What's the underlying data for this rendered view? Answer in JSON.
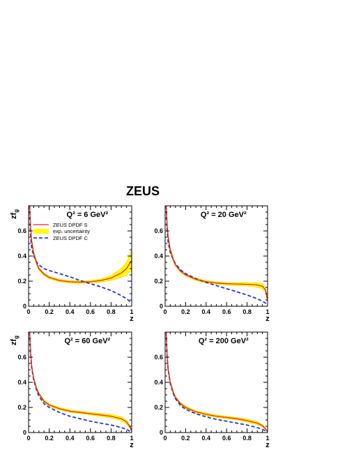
{
  "figure": {
    "title": "ZEUS",
    "colors": {
      "dpdf_s": "#e8231c",
      "band": "#ffff00",
      "band_edge": "#e0c800",
      "dpdf_c": "#1f34e0",
      "axis": "#000000"
    }
  },
  "chart_data": [
    {
      "type": "line",
      "panel_label": "Q² = 6 GeV²",
      "xlabel": "z",
      "ylabel": "zf",
      "ylabel_sub": "g",
      "xlim": [
        0,
        1
      ],
      "ylim": [
        0,
        0.8
      ],
      "xticks": [
        "0",
        "0.2",
        "0.4",
        "0.6",
        "0.8",
        "1"
      ],
      "yticks": [
        "0",
        "0.2",
        "0.4",
        "0.6"
      ],
      "legend": {
        "items": [
          "ZEUS DPDF S",
          "exp. uncertainty",
          "ZEUS DPDF C"
        ],
        "placement": "top-left"
      },
      "series": [
        {
          "name": "ZEUS DPDF S",
          "x": [
            0.01,
            0.02,
            0.03,
            0.05,
            0.08,
            0.1,
            0.15,
            0.2,
            0.3,
            0.4,
            0.5,
            0.6,
            0.7,
            0.8,
            0.9,
            0.95,
            0.98,
            0.995
          ],
          "y": [
            0.8,
            0.62,
            0.52,
            0.42,
            0.34,
            0.3,
            0.255,
            0.23,
            0.205,
            0.195,
            0.192,
            0.195,
            0.205,
            0.225,
            0.265,
            0.3,
            0.34,
            0.36
          ],
          "err": [
            0.05,
            0.03,
            0.025,
            0.02,
            0.015,
            0.012,
            0.01,
            0.01,
            0.01,
            0.01,
            0.01,
            0.01,
            0.012,
            0.02,
            0.035,
            0.05,
            0.065,
            0.08
          ]
        },
        {
          "name": "ZEUS DPDF C",
          "x": [
            0.01,
            0.02,
            0.03,
            0.05,
            0.08,
            0.1,
            0.15,
            0.2,
            0.3,
            0.4,
            0.5,
            0.6,
            0.7,
            0.8,
            0.9,
            0.95,
            0.98,
            0.995
          ],
          "y": [
            0.8,
            0.55,
            0.47,
            0.4,
            0.35,
            0.33,
            0.3,
            0.285,
            0.26,
            0.235,
            0.205,
            0.18,
            0.155,
            0.125,
            0.085,
            0.06,
            0.04,
            0.03
          ]
        }
      ]
    },
    {
      "type": "line",
      "panel_label": "Q² = 20 GeV²",
      "xlabel": "z",
      "ylabel": "",
      "xlim": [
        0,
        1
      ],
      "ylim": [
        0,
        0.8
      ],
      "xticks": [
        "0",
        "0.2",
        "0.4",
        "0.6",
        "0.8",
        "1"
      ],
      "yticks": [
        "0",
        "0.2",
        "0.4",
        "0.6"
      ],
      "series": [
        {
          "name": "ZEUS DPDF S",
          "x": [
            0.01,
            0.02,
            0.03,
            0.05,
            0.08,
            0.1,
            0.15,
            0.2,
            0.3,
            0.4,
            0.5,
            0.6,
            0.7,
            0.8,
            0.9,
            0.95,
            0.98,
            0.995
          ],
          "y": [
            0.8,
            0.64,
            0.55,
            0.45,
            0.37,
            0.33,
            0.28,
            0.25,
            0.215,
            0.195,
            0.185,
            0.18,
            0.177,
            0.175,
            0.17,
            0.16,
            0.13,
            0.06
          ],
          "err": [
            0.05,
            0.03,
            0.025,
            0.02,
            0.015,
            0.012,
            0.01,
            0.01,
            0.01,
            0.01,
            0.01,
            0.01,
            0.012,
            0.014,
            0.018,
            0.02,
            0.02,
            0.015
          ]
        },
        {
          "name": "ZEUS DPDF C",
          "x": [
            0.01,
            0.02,
            0.03,
            0.05,
            0.08,
            0.1,
            0.15,
            0.2,
            0.3,
            0.4,
            0.5,
            0.6,
            0.7,
            0.8,
            0.9,
            0.95,
            0.98,
            0.995
          ],
          "y": [
            0.8,
            0.6,
            0.51,
            0.43,
            0.37,
            0.34,
            0.29,
            0.26,
            0.22,
            0.19,
            0.165,
            0.14,
            0.115,
            0.09,
            0.06,
            0.04,
            0.025,
            0.01
          ]
        }
      ]
    },
    {
      "type": "line",
      "panel_label": "Q² = 60 GeV²",
      "xlabel": "z",
      "ylabel": "zf",
      "ylabel_sub": "g",
      "xlim": [
        0,
        1
      ],
      "ylim": [
        0,
        0.8
      ],
      "xticks": [
        "0",
        "0.2",
        "0.4",
        "0.6",
        "0.8",
        "1"
      ],
      "yticks": [
        "0",
        "0.2",
        "0.4",
        "0.6"
      ],
      "series": [
        {
          "name": "ZEUS DPDF S",
          "x": [
            0.01,
            0.02,
            0.03,
            0.05,
            0.08,
            0.1,
            0.15,
            0.2,
            0.3,
            0.4,
            0.5,
            0.6,
            0.7,
            0.8,
            0.9,
            0.95,
            0.98,
            0.995
          ],
          "y": [
            0.8,
            0.63,
            0.53,
            0.43,
            0.345,
            0.31,
            0.25,
            0.22,
            0.19,
            0.17,
            0.16,
            0.15,
            0.14,
            0.13,
            0.11,
            0.085,
            0.05,
            0.02
          ],
          "err": [
            0.05,
            0.03,
            0.02,
            0.015,
            0.012,
            0.01,
            0.01,
            0.01,
            0.01,
            0.01,
            0.01,
            0.01,
            0.012,
            0.014,
            0.016,
            0.016,
            0.012,
            0.008
          ]
        },
        {
          "name": "ZEUS DPDF C",
          "x": [
            0.01,
            0.02,
            0.03,
            0.05,
            0.08,
            0.1,
            0.15,
            0.2,
            0.3,
            0.4,
            0.5,
            0.6,
            0.7,
            0.8,
            0.9,
            0.95,
            0.98,
            0.995
          ],
          "y": [
            0.8,
            0.63,
            0.52,
            0.42,
            0.33,
            0.29,
            0.23,
            0.2,
            0.16,
            0.13,
            0.11,
            0.09,
            0.075,
            0.06,
            0.04,
            0.025,
            0.012,
            0.005
          ]
        }
      ]
    },
    {
      "type": "line",
      "panel_label": "Q² = 200 GeV²",
      "xlabel": "z",
      "ylabel": "",
      "xlim": [
        0,
        1
      ],
      "ylim": [
        0,
        0.8
      ],
      "xticks": [
        "0",
        "0.2",
        "0.4",
        "0.6",
        "0.8",
        "1"
      ],
      "yticks": [
        "0",
        "0.2",
        "0.4",
        "0.6"
      ],
      "series": [
        {
          "name": "ZEUS DPDF S",
          "x": [
            0.01,
            0.02,
            0.03,
            0.05,
            0.08,
            0.1,
            0.15,
            0.2,
            0.3,
            0.4,
            0.5,
            0.6,
            0.7,
            0.8,
            0.9,
            0.95,
            0.98,
            0.995
          ],
          "y": [
            0.8,
            0.6,
            0.5,
            0.4,
            0.32,
            0.28,
            0.23,
            0.2,
            0.165,
            0.145,
            0.13,
            0.12,
            0.11,
            0.095,
            0.075,
            0.055,
            0.03,
            0.01
          ],
          "err": [
            0.05,
            0.03,
            0.02,
            0.015,
            0.012,
            0.01,
            0.01,
            0.01,
            0.01,
            0.01,
            0.01,
            0.01,
            0.01,
            0.012,
            0.012,
            0.01,
            0.008,
            0.005
          ]
        },
        {
          "name": "ZEUS DPDF C",
          "x": [
            0.01,
            0.02,
            0.03,
            0.05,
            0.08,
            0.1,
            0.15,
            0.2,
            0.3,
            0.4,
            0.5,
            0.6,
            0.7,
            0.8,
            0.9,
            0.95,
            0.98,
            0.995
          ],
          "y": [
            0.8,
            0.6,
            0.5,
            0.39,
            0.31,
            0.27,
            0.215,
            0.185,
            0.15,
            0.125,
            0.105,
            0.09,
            0.075,
            0.06,
            0.04,
            0.025,
            0.012,
            0.005
          ]
        }
      ]
    }
  ]
}
